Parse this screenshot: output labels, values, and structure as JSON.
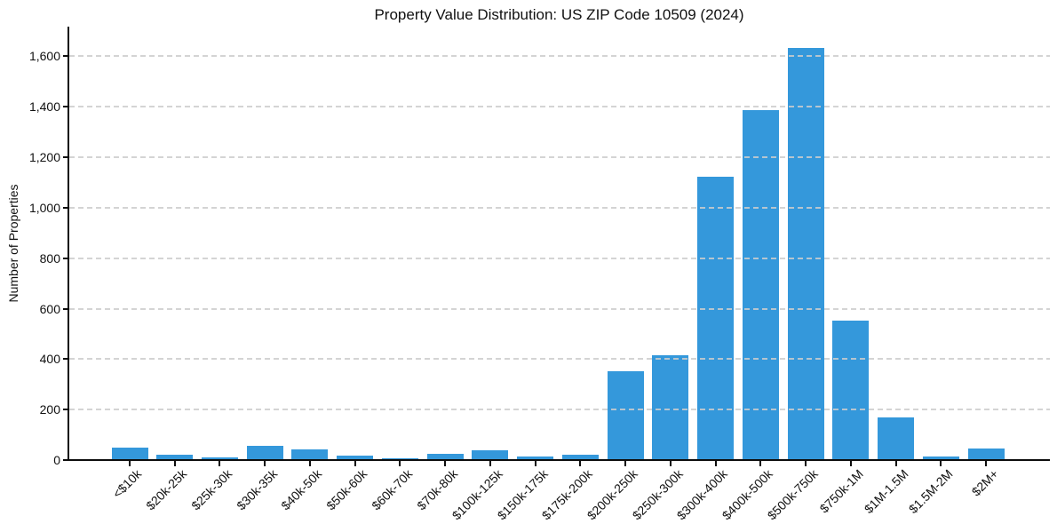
{
  "chart_data": {
    "type": "bar",
    "title": "Property Value Distribution: US ZIP Code 10509 (2024)",
    "xlabel": "",
    "ylabel": "Number of Properties",
    "categories": [
      "<$10k",
      "$20k-25k",
      "$25k-30k",
      "$30k-35k",
      "$40k-50k",
      "$50k-60k",
      "$60k-70k",
      "$70k-80k",
      "$100k-125k",
      "$150k-175k",
      "$175k-200k",
      "$200k-250k",
      "$250k-300k",
      "$300k-400k",
      "$400k-500k",
      "$500k-750k",
      "$750k-1M",
      "$1M-1.5M",
      "$1.5M-2M",
      "$2M+"
    ],
    "values": [
      48,
      22,
      10,
      55,
      42,
      18,
      7,
      25,
      38,
      15,
      20,
      352,
      415,
      1124,
      1386,
      1632,
      552,
      170,
      14,
      46
    ],
    "ytick_labels": [
      "0",
      "200",
      "400",
      "600",
      "800",
      "1,000",
      "1,200",
      "1,400",
      "1,600"
    ],
    "ytick_values": [
      0,
      200,
      400,
      600,
      800,
      1000,
      1200,
      1400,
      1600
    ],
    "ylim": [
      0,
      1717
    ],
    "grid": "horizontal-dashed",
    "legend": "none",
    "colors": {
      "bar": "#3498db",
      "gridline": "#cdcdcd",
      "axis": "#0d0d0d",
      "text": "#111111",
      "background": "#ffffff"
    }
  }
}
